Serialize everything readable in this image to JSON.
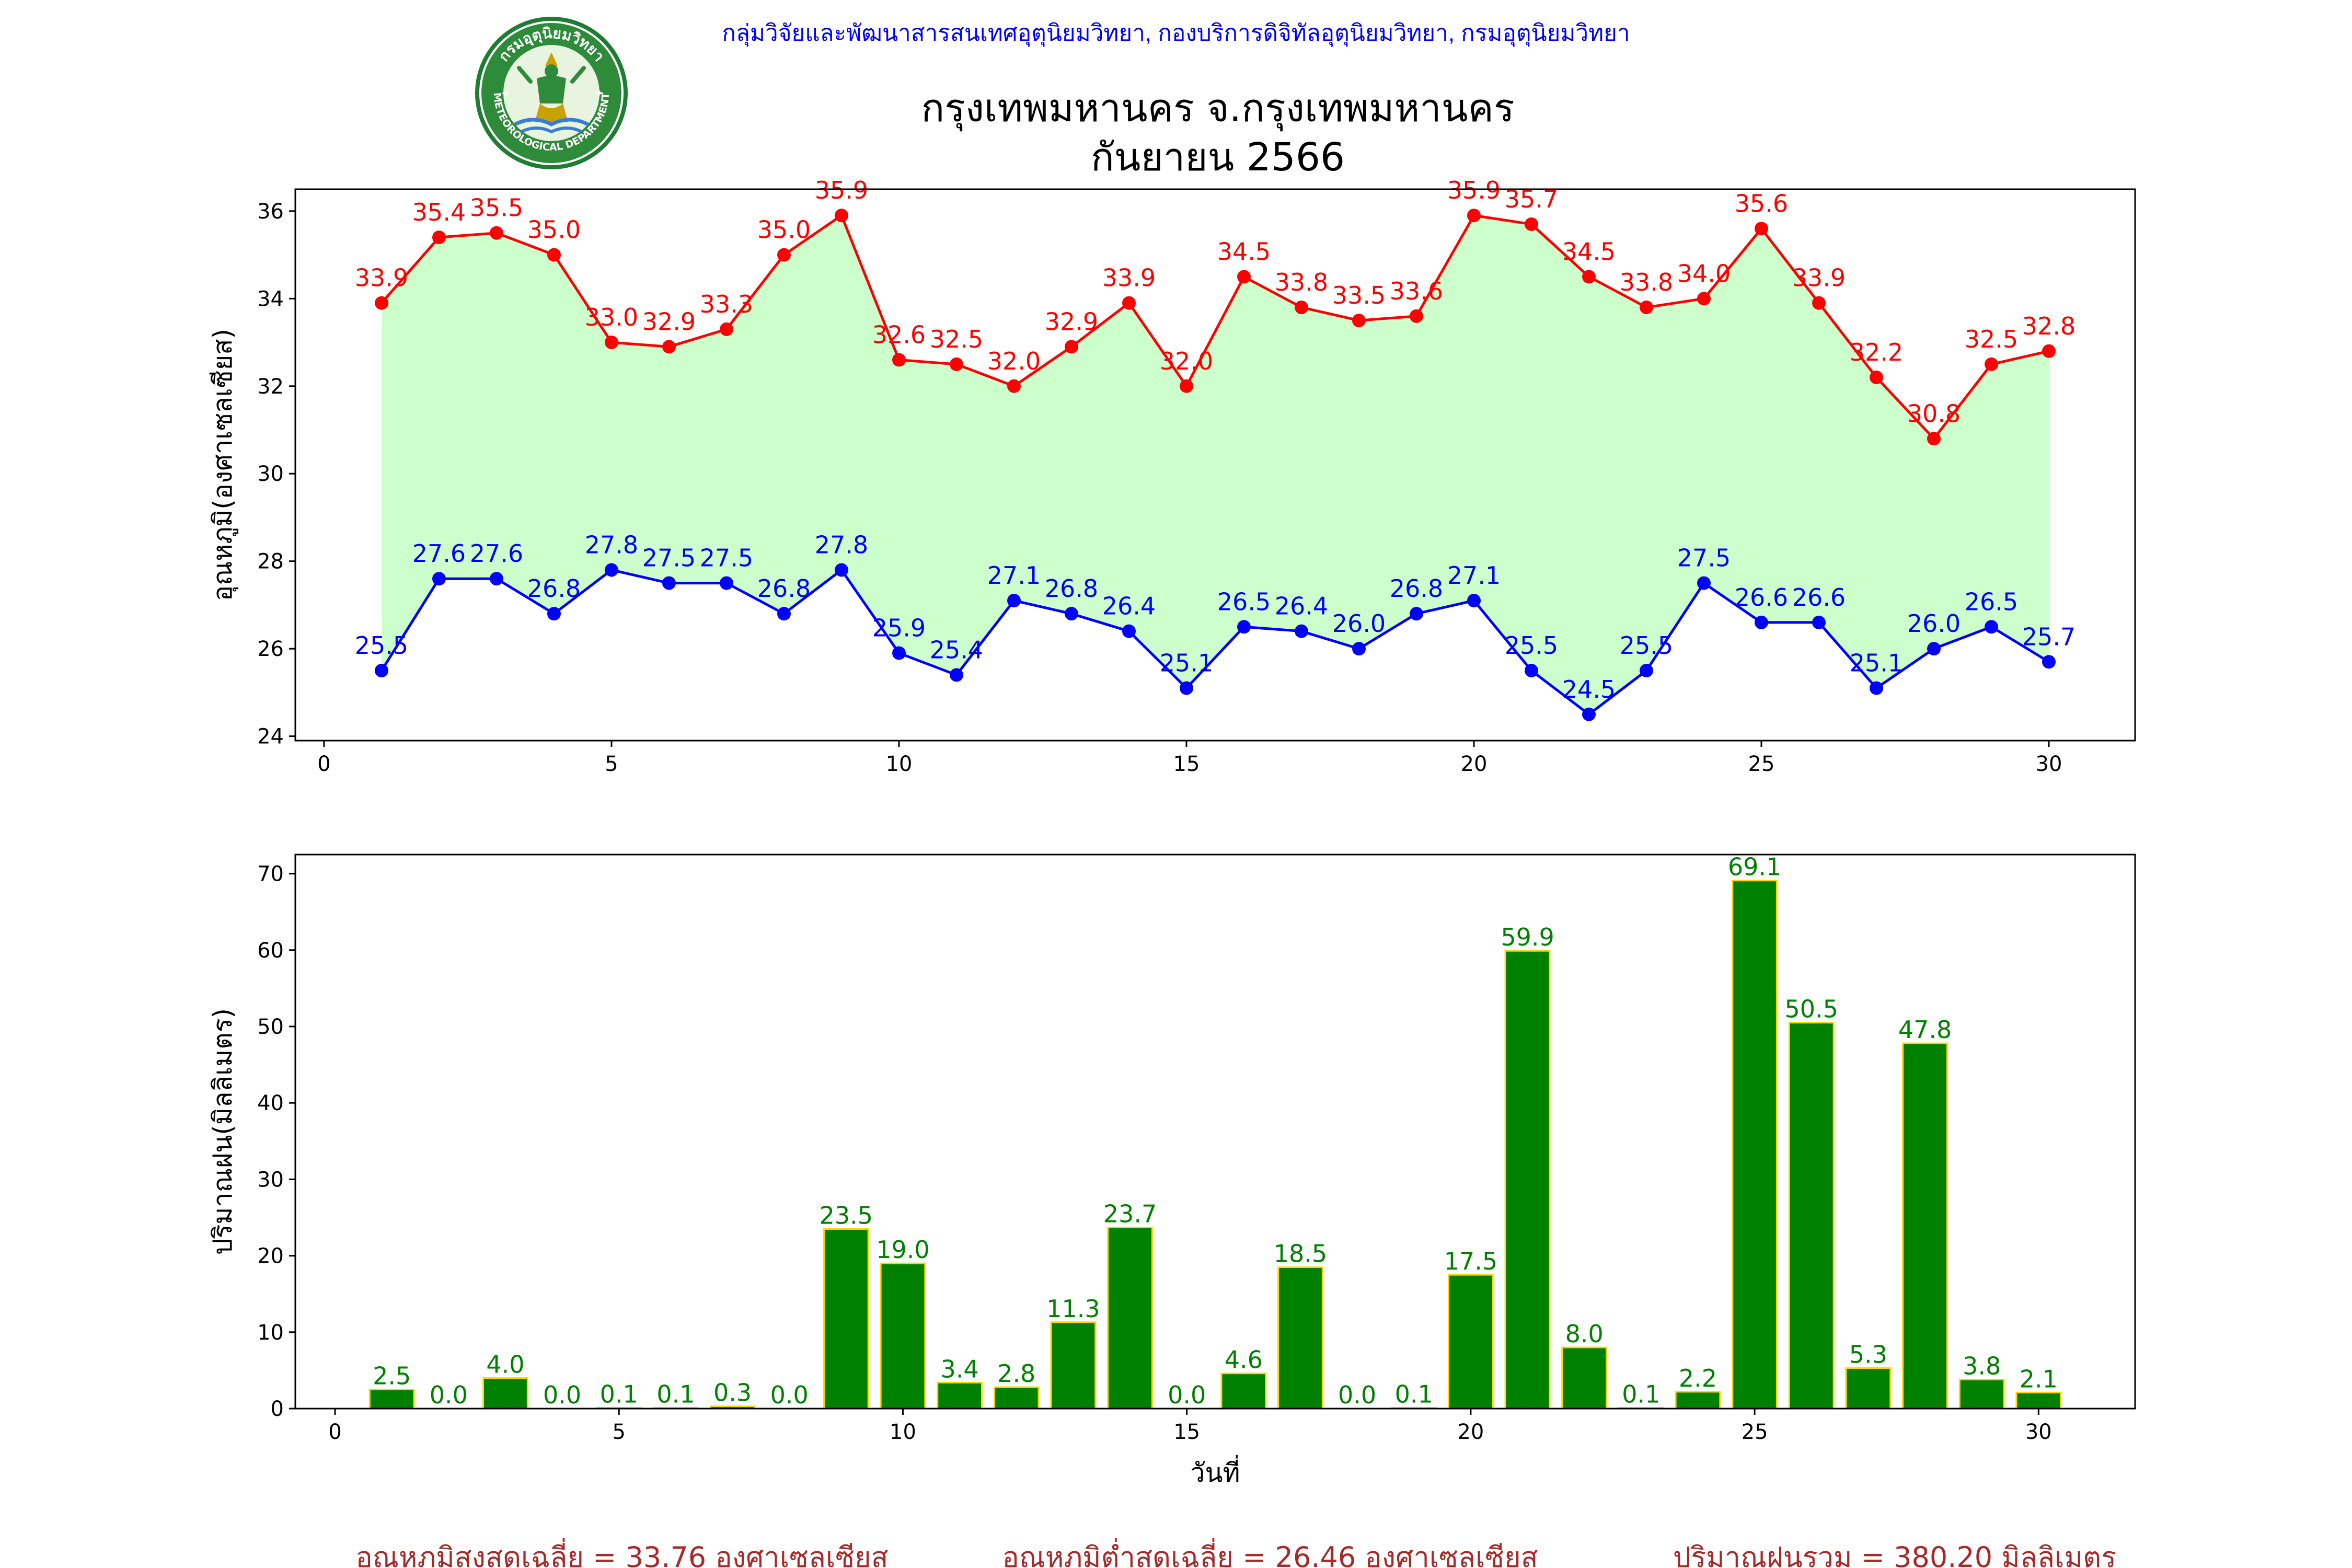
{
  "header": {
    "agency": "กลุ่มวิจัยและพัฒนาสารสนเทศอุตุนิยมวิทยา, กองบริการดิจิทัลอุตุนิยมวิทยา, กรมอุตุนิยมวิทยา",
    "title_line1": "กรุงเทพมหานคร จ.กรุงเทพมหานคร",
    "title_line2": "กันยายน 2566",
    "logo_text_top": "กรมอุตุนิยมวิทยา",
    "logo_text_bottom": "METEOROLOGICAL DEPARTMENT"
  },
  "colors": {
    "max": "#ff0000",
    "min": "#0000ff",
    "fill": "#ccffcc",
    "rain_bar": "#008000",
    "rain_edge": "#ffd700",
    "rain_label": "#008000",
    "footer": "#a52a2a",
    "agency": "#0000ff"
  },
  "chart_data": [
    {
      "type": "line",
      "ylabel": "อุณหภูมิ(องศาเซลเซียส)",
      "xlabel": "",
      "xlim": [
        -0.5,
        31.5
      ],
      "ylim": [
        23.9,
        36.5
      ],
      "xticks": [
        0,
        5,
        10,
        15,
        20,
        25,
        30
      ],
      "yticks": [
        24,
        26,
        28,
        30,
        32,
        34,
        36
      ],
      "grid": false,
      "x": [
        1,
        2,
        3,
        4,
        5,
        6,
        7,
        8,
        9,
        10,
        11,
        12,
        13,
        14,
        15,
        16,
        17,
        18,
        19,
        20,
        21,
        22,
        23,
        24,
        25,
        26,
        27,
        28,
        29,
        30
      ],
      "series": [
        {
          "key": "max",
          "values": [
            33.9,
            35.4,
            35.5,
            35.0,
            33.0,
            32.9,
            33.3,
            35.0,
            35.9,
            32.6,
            32.5,
            32.0,
            32.9,
            33.9,
            32.0,
            34.5,
            33.8,
            33.5,
            33.6,
            35.9,
            35.7,
            34.5,
            33.8,
            34.0,
            35.6,
            33.9,
            32.2,
            30.8,
            32.5,
            32.8
          ]
        },
        {
          "key": "min",
          "values": [
            25.5,
            27.6,
            27.6,
            26.8,
            27.8,
            27.5,
            27.5,
            26.8,
            27.8,
            25.9,
            25.4,
            27.1,
            26.8,
            26.4,
            25.1,
            26.5,
            26.4,
            26.0,
            26.8,
            27.1,
            25.5,
            24.5,
            25.5,
            27.5,
            26.6,
            26.6,
            25.1,
            26.0,
            26.5,
            25.7
          ]
        }
      ]
    },
    {
      "type": "bar",
      "ylabel": "ปริมาณฝน(มิลลิเมตร)",
      "xlabel": "วันที่",
      "xlim": [
        -0.7,
        31.7
      ],
      "ylim": [
        0,
        72.5
      ],
      "xticks": [
        0,
        5,
        10,
        15,
        20,
        25,
        30
      ],
      "yticks": [
        0,
        10,
        20,
        30,
        40,
        50,
        60,
        70
      ],
      "grid": false,
      "x": [
        1,
        2,
        3,
        4,
        5,
        6,
        7,
        8,
        9,
        10,
        11,
        12,
        13,
        14,
        15,
        16,
        17,
        18,
        19,
        20,
        21,
        22,
        23,
        24,
        25,
        26,
        27,
        28,
        29,
        30
      ],
      "values": [
        2.5,
        0.0,
        4.0,
        0.0,
        0.1,
        0.1,
        0.3,
        0.0,
        23.5,
        19.0,
        3.4,
        2.8,
        11.3,
        23.7,
        0.0,
        4.6,
        18.5,
        0.0,
        0.1,
        17.5,
        59.9,
        8.0,
        0.1,
        2.2,
        69.1,
        50.5,
        5.3,
        47.8,
        3.8,
        2.1
      ]
    }
  ],
  "footer": {
    "avg_max": "อุณหภูมิสูงสุดเฉลี่ย = 33.76 องศาเซลเซียส",
    "avg_min": "อุณหภูมิต่ำสุดเฉลี่ย = 26.46 องศาเซลเซียส",
    "total_rain": "ปริมาณฝนรวม = 380.20 มิลลิเมตร"
  }
}
